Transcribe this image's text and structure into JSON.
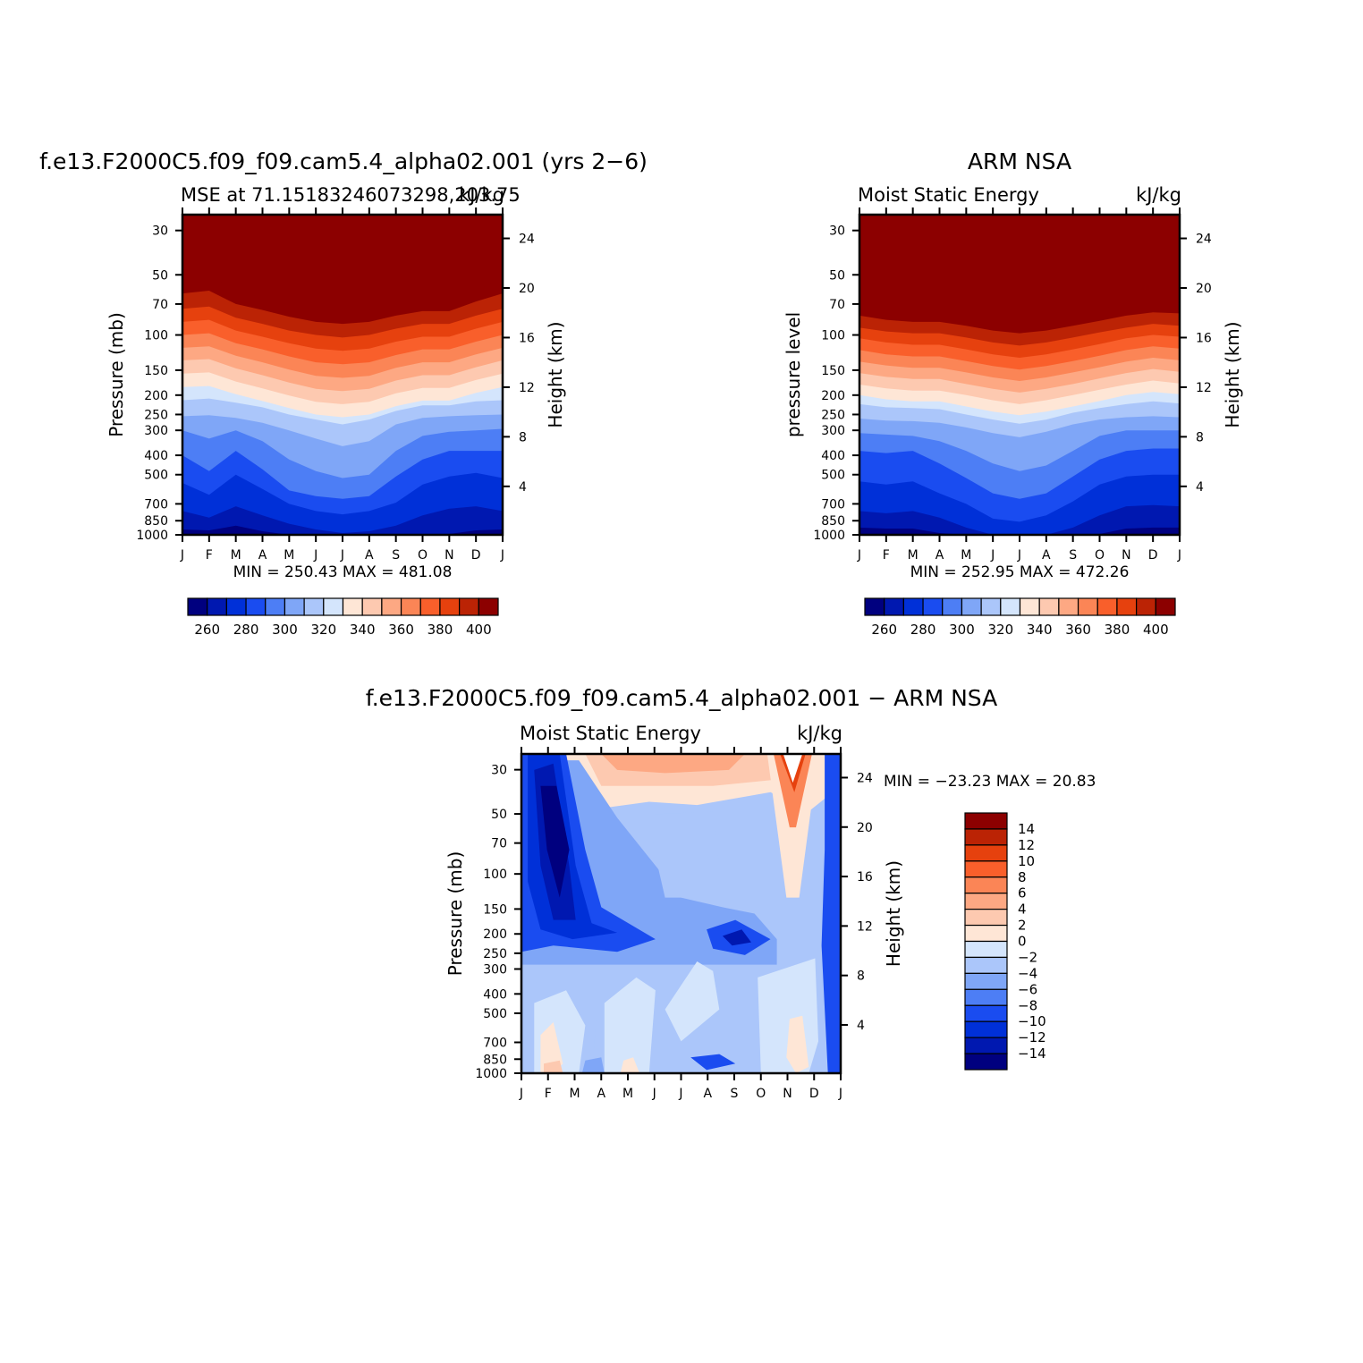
{
  "chart_data": [
    {
      "type": "heatmap",
      "title": "f.e13.F2000C5.f09_f09.cam5.4_alpha02.001 (yrs 2−6)",
      "subtitle_left": "MSE at 71.15183246073298,203.75",
      "subtitle_right": "kJ/kg",
      "ylabel": "Pressure (mb)",
      "y2label": "Height (km)",
      "stats": "MIN = 250.43 MAX = 481.08",
      "months": [
        "J",
        "F",
        "M",
        "A",
        "M",
        "J",
        "J",
        "A",
        "S",
        "O",
        "N",
        "D",
        "J"
      ],
      "pressure_ticks": [
        30,
        50,
        70,
        100,
        150,
        200,
        250,
        300,
        400,
        500,
        700,
        850,
        1000
      ],
      "height_ticks": [
        24,
        20,
        16,
        12,
        8,
        4
      ],
      "ylim": [
        1000,
        25
      ],
      "levels": [
        250,
        260,
        270,
        280,
        290,
        300,
        310,
        320,
        330,
        340,
        350,
        360,
        370,
        380,
        390,
        400,
        410
      ],
      "contour_pressure_mb": {
        "400": [
          52,
          50,
          60,
          65,
          70,
          75,
          77,
          75,
          70,
          67,
          67,
          60,
          52
        ],
        "390": [
          62,
          60,
          70,
          75,
          81,
          86,
          88,
          86,
          80,
          76,
          76,
          68,
          62
        ],
        "380": [
          74,
          72,
          82,
          88,
          95,
          100,
          103,
          100,
          93,
          88,
          88,
          80,
          74
        ],
        "370": [
          86,
          84,
          95,
          102,
          110,
          117,
          120,
          117,
          108,
          102,
          102,
          93,
          86
        ],
        "360": [
          100,
          98,
          110,
          118,
          128,
          137,
          140,
          137,
          126,
          118,
          118,
          108,
          100
        ],
        "350": [
          116,
          114,
          127,
          137,
          149,
          160,
          164,
          160,
          146,
          137,
          137,
          125,
          116
        ],
        "340": [
          134,
          132,
          147,
          159,
          173,
          186,
          191,
          186,
          169,
          159,
          159,
          145,
          134
        ],
        "330": [
          156,
          154,
          171,
          185,
          201,
          216,
          222,
          216,
          196,
          184,
          184,
          168,
          156
        ],
        "320": [
          182,
          180,
          198,
          214,
          232,
          250,
          258,
          250,
          227,
          213,
          213,
          195,
          182
        ],
        "310": [
          212,
          208,
          218,
          230,
          250,
          265,
          280,
          265,
          240,
          225,
          225,
          215,
          212
        ],
        "300": [
          255,
          252,
          260,
          275,
          300,
          330,
          360,
          340,
          280,
          260,
          255,
          252,
          250
        ],
        "290": [
          300,
          330,
          300,
          340,
          420,
          480,
          520,
          500,
          380,
          320,
          305,
          300,
          295
        ],
        "280": [
          400,
          480,
          380,
          470,
          600,
          640,
          660,
          640,
          510,
          420,
          380,
          380,
          380
        ],
        "270": [
          550,
          630,
          500,
          590,
          700,
          760,
          790,
          760,
          690,
          560,
          510,
          490,
          520
        ],
        "260": [
          760,
          820,
          720,
          800,
          880,
          940,
          980,
          960,
          900,
          800,
          740,
          720,
          760
        ],
        "250": [
          940,
          950,
          900,
          960,
          1005,
          1005,
          1005,
          1005,
          1005,
          1005,
          990,
          950,
          940
        ]
      },
      "colorbar": {
        "ticks": [
          260,
          280,
          300,
          320,
          340,
          360,
          380,
          400
        ]
      }
    },
    {
      "type": "heatmap",
      "title": "ARM NSA",
      "subtitle_left": "Moist Static Energy",
      "subtitle_right": "kJ/kg",
      "ylabel": "pressure level",
      "y2label": "Height (km)",
      "stats": "MIN = 252.95 MAX = 472.26",
      "months": [
        "J",
        "F",
        "M",
        "A",
        "M",
        "J",
        "J",
        "A",
        "S",
        "O",
        "N",
        "D",
        "J"
      ],
      "pressure_ticks": [
        30,
        50,
        70,
        100,
        150,
        200,
        250,
        300,
        400,
        500,
        700,
        850,
        1000
      ],
      "height_ticks": [
        24,
        20,
        16,
        12,
        8,
        4
      ],
      "ylim": [
        1000,
        25
      ],
      "levels": [
        250,
        260,
        270,
        280,
        290,
        300,
        310,
        320,
        330,
        340,
        350,
        360,
        370,
        380,
        390,
        400,
        410
      ],
      "contour_pressure_mb": {
        "400": [
          70,
          73,
          75,
          75,
          78,
          82,
          85,
          82,
          78,
          74,
          70,
          67,
          68
        ],
        "390": [
          80,
          84,
          86,
          86,
          90,
          95,
          98,
          95,
          90,
          85,
          80,
          77,
          78
        ],
        "380": [
          92,
          96,
          98,
          98,
          103,
          109,
          113,
          109,
          103,
          97,
          92,
          88,
          90
        ],
        "370": [
          104,
          109,
          112,
          112,
          118,
          125,
          130,
          125,
          118,
          111,
          104,
          100,
          102
        ],
        "360": [
          119,
          125,
          128,
          128,
          135,
          143,
          149,
          143,
          135,
          127,
          119,
          114,
          117
        ],
        "350": [
          136,
          142,
          146,
          146,
          154,
          163,
          170,
          163,
          154,
          145,
          136,
          130,
          134
        ],
        "340": [
          155,
          162,
          166,
          166,
          176,
          186,
          194,
          186,
          176,
          165,
          155,
          148,
          153
        ],
        "330": [
          177,
          185,
          190,
          190,
          200,
          212,
          222,
          212,
          200,
          188,
          177,
          169,
          175
        ],
        "320": [
          200,
          210,
          215,
          215,
          228,
          242,
          252,
          242,
          228,
          214,
          200,
          193,
          198
        ],
        "310": [
          222,
          230,
          232,
          235,
          250,
          265,
          278,
          265,
          245,
          232,
          222,
          215,
          220
        ],
        "300": [
          262,
          268,
          270,
          275,
          290,
          310,
          325,
          305,
          280,
          265,
          258,
          255,
          258
        ],
        "290": [
          310,
          315,
          320,
          340,
          380,
          440,
          480,
          450,
          380,
          320,
          300,
          300,
          300
        ],
        "280": [
          380,
          390,
          380,
          440,
          520,
          620,
          660,
          620,
          510,
          420,
          380,
          370,
          370
        ],
        "270": [
          540,
          560,
          540,
          620,
          700,
          830,
          860,
          800,
          680,
          560,
          510,
          500,
          500
        ],
        "260": [
          760,
          780,
          760,
          820,
          920,
          1000,
          1000,
          1000,
          920,
          800,
          720,
          710,
          720
        ],
        "250": [
          920,
          930,
          930,
          980,
          1005,
          1005,
          1005,
          1005,
          1005,
          990,
          930,
          920,
          920
        ]
      },
      "colorbar": {
        "ticks": [
          260,
          280,
          300,
          320,
          340,
          360,
          380,
          400
        ]
      }
    },
    {
      "type": "heatmap",
      "title": "f.e13.F2000C5.f09_f09.cam5.4_alpha02.001 − ARM NSA",
      "subtitle_left": "Moist Static Energy",
      "subtitle_right": "kJ/kg",
      "ylabel": "Pressure (mb)",
      "y2label": "Height (km)",
      "stats": "MIN = −23.23 MAX =   20.83",
      "months": [
        "J",
        "F",
        "M",
        "A",
        "M",
        "J",
        "J",
        "A",
        "S",
        "O",
        "N",
        "D",
        "J"
      ],
      "pressure_ticks": [
        30,
        50,
        70,
        100,
        150,
        200,
        250,
        300,
        400,
        500,
        700,
        850,
        1000
      ],
      "height_ticks": [
        24,
        20,
        16,
        12,
        8,
        4
      ],
      "ylim": [
        1000,
        25
      ],
      "levels": [
        -16,
        -14,
        -12,
        -10,
        -8,
        -6,
        -4,
        -2,
        0,
        2,
        4,
        6,
        8,
        10,
        12,
        14,
        16
      ],
      "colorbar": {
        "ticks": [
          "14",
          "12",
          "10",
          "8",
          "6",
          "4",
          "2",
          "0",
          "−2",
          "−4",
          "−6",
          "−8",
          "−10",
          "−12",
          "−14"
        ]
      }
    }
  ],
  "palette": [
    "#00007f",
    "#0018b0",
    "#0030d8",
    "#1a4cf0",
    "#4d7ef5",
    "#7fa6f7",
    "#abc6fa",
    "#d4e5fc",
    "#fee6d6",
    "#fdc9b0",
    "#fda883",
    "#fb8556",
    "#f95f2b",
    "#e6410e",
    "#bb2305",
    "#8c0000"
  ],
  "blank_color": "#ffffff"
}
